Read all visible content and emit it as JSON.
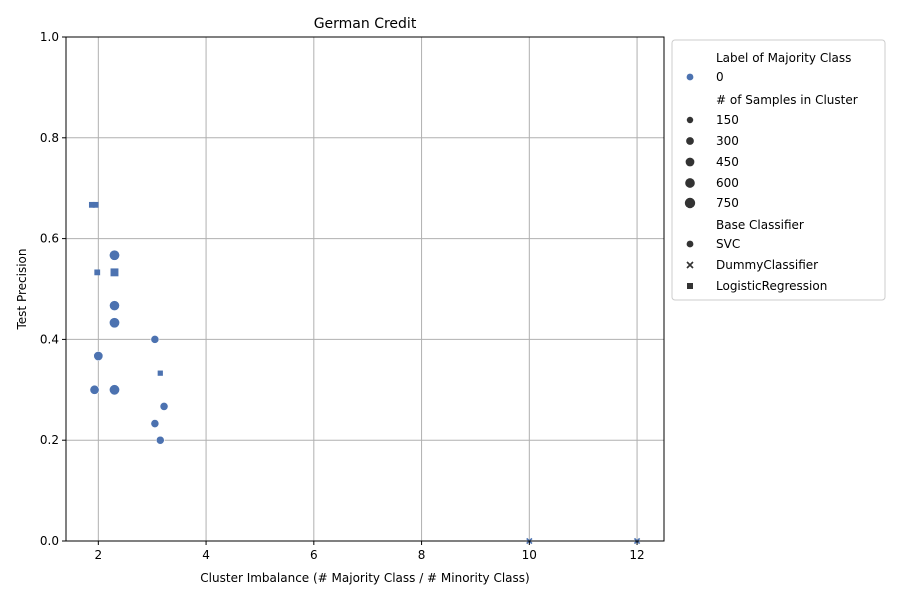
{
  "chart_data": {
    "type": "scatter",
    "title": "German Credit",
    "xlabel": "Cluster Imbalance (# Majority Class / # Minority Class)",
    "ylabel": "Test Precision",
    "xlim": [
      1.4,
      12.5
    ],
    "ylim": [
      0.0,
      1.0
    ],
    "xticks": [
      2,
      4,
      6,
      8,
      10,
      12
    ],
    "yticks": [
      0.0,
      0.2,
      0.4,
      0.6,
      0.8,
      1.0
    ],
    "xtick_labels": [
      "2",
      "4",
      "6",
      "8",
      "10",
      "12"
    ],
    "ytick_labels": [
      "0.0",
      "0.2",
      "0.4",
      "0.6",
      "0.8",
      "1.0"
    ],
    "grid": true,
    "color": "#4c72b0",
    "legend": {
      "placement": "outside-upper-right",
      "hue_title": "Label of Majority Class",
      "hue_items": [
        {
          "label": "0",
          "color": "#4c72b0"
        }
      ],
      "size_title": "# of Samples in Cluster",
      "size_items": [
        {
          "label": "150",
          "size": 150
        },
        {
          "label": "300",
          "size": 300
        },
        {
          "label": "450",
          "size": 450
        },
        {
          "label": "600",
          "size": 600
        },
        {
          "label": "750",
          "size": 750
        }
      ],
      "style_title": "Base Classifier",
      "style_items": [
        {
          "label": "SVC",
          "marker": "circle"
        },
        {
          "label": "DummyClassifier",
          "marker": "x"
        },
        {
          "label": "LogisticRegression",
          "marker": "square"
        }
      ]
    },
    "points": [
      {
        "x": 2.3,
        "y": 0.567,
        "size": 750,
        "marker": "circle"
      },
      {
        "x": 2.3,
        "y": 0.467,
        "size": 700,
        "marker": "circle"
      },
      {
        "x": 2.3,
        "y": 0.433,
        "size": 750,
        "marker": "circle"
      },
      {
        "x": 2.3,
        "y": 0.3,
        "size": 750,
        "marker": "circle"
      },
      {
        "x": 2.0,
        "y": 0.367,
        "size": 550,
        "marker": "circle"
      },
      {
        "x": 1.93,
        "y": 0.3,
        "size": 550,
        "marker": "circle"
      },
      {
        "x": 3.05,
        "y": 0.4,
        "size": 350,
        "marker": "circle"
      },
      {
        "x": 3.05,
        "y": 0.233,
        "size": 350,
        "marker": "circle"
      },
      {
        "x": 3.22,
        "y": 0.267,
        "size": 350,
        "marker": "circle"
      },
      {
        "x": 3.15,
        "y": 0.2,
        "size": 350,
        "marker": "circle"
      },
      {
        "x": 1.88,
        "y": 0.667,
        "size": 150,
        "marker": "square"
      },
      {
        "x": 1.95,
        "y": 0.667,
        "size": 150,
        "marker": "square"
      },
      {
        "x": 1.98,
        "y": 0.533,
        "size": 150,
        "marker": "square"
      },
      {
        "x": 2.3,
        "y": 0.533,
        "size": 450,
        "marker": "square"
      },
      {
        "x": 3.15,
        "y": 0.333,
        "size": 100,
        "marker": "square"
      },
      {
        "x": 10.0,
        "y": 0.0,
        "size": 60,
        "marker": "x"
      },
      {
        "x": 12.0,
        "y": 0.0,
        "size": 60,
        "marker": "x"
      }
    ]
  }
}
